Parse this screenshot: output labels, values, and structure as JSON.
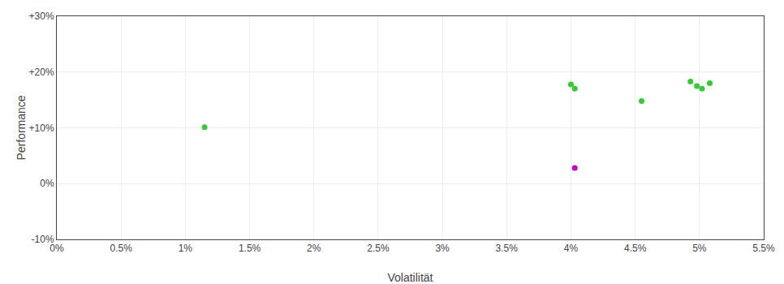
{
  "chart_data": {
    "type": "scatter",
    "xlabel": "Volatilität",
    "ylabel": "Performance",
    "xlim": [
      0.0,
      0.055
    ],
    "ylim": [
      -0.1,
      0.3
    ],
    "xticks": [
      {
        "value": 0.0,
        "label": "0%"
      },
      {
        "value": 0.005,
        "label": "0.5%"
      },
      {
        "value": 0.01,
        "label": "1%"
      },
      {
        "value": 0.015,
        "label": "1.5%"
      },
      {
        "value": 0.02,
        "label": "2%"
      },
      {
        "value": 0.025,
        "label": "2.5%"
      },
      {
        "value": 0.03,
        "label": "3%"
      },
      {
        "value": 0.035,
        "label": "3.5%"
      },
      {
        "value": 0.04,
        "label": "4%"
      },
      {
        "value": 0.045,
        "label": "4.5%"
      },
      {
        "value": 0.05,
        "label": "5%"
      },
      {
        "value": 0.055,
        "label": "5.5%"
      }
    ],
    "yticks": [
      {
        "value": -0.1,
        "label": "-10%"
      },
      {
        "value": 0.0,
        "label": "0%"
      },
      {
        "value": 0.1,
        "label": "+10%"
      },
      {
        "value": 0.2,
        "label": "+20%"
      },
      {
        "value": 0.3,
        "label": "+30%"
      }
    ],
    "grid": true,
    "series": [
      {
        "color": "#33cc33",
        "x": [
          0.0115,
          0.04,
          0.0403,
          0.0455,
          0.0493,
          0.0498,
          0.0502,
          0.0508
        ],
        "values": [
          0.101,
          0.178,
          0.17,
          0.148,
          0.183,
          0.175,
          0.17,
          0.18
        ]
      },
      {
        "color": "#cc00cc",
        "x": [
          0.0403
        ],
        "values": [
          0.028
        ]
      }
    ]
  }
}
